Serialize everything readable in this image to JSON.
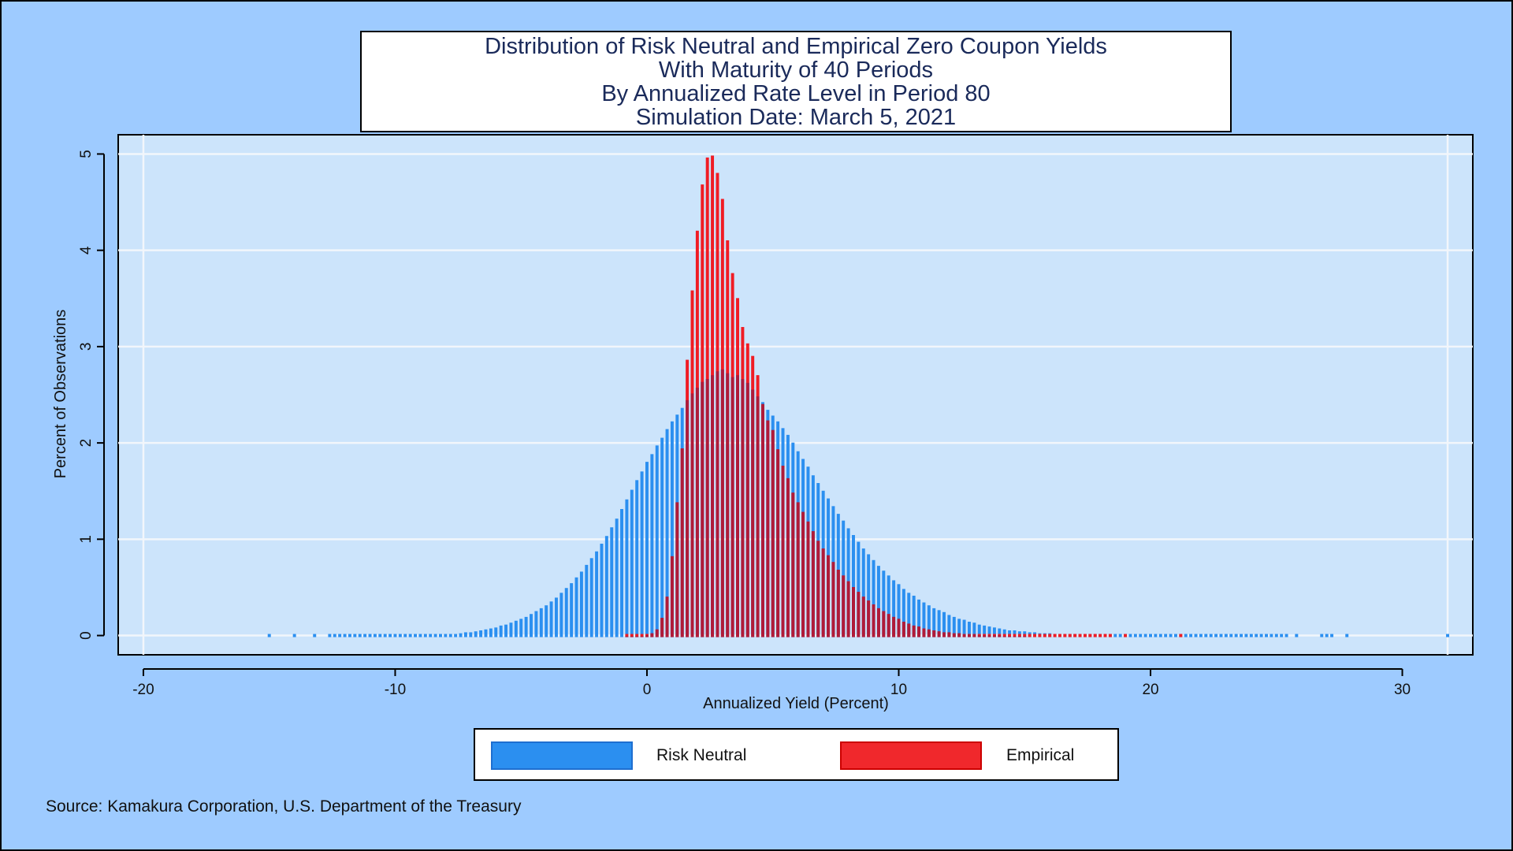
{
  "title_lines": [
    "Distribution of Risk Neutral and Empirical Zero Coupon Yields",
    "With Maturity of 40 Periods",
    "By Annualized Rate Level in Period 80",
    "Simulation Date: March 5, 2021"
  ],
  "source": "Source: Kamakura Corporation, U.S. Department of the Treasury",
  "colors": {
    "background": "#9ecbff",
    "plot_area": "#cce4fb",
    "risk_neutral": "#2b8ff0",
    "empirical": "#f01c24",
    "overlap": "#7a1c4a"
  },
  "chart_data": {
    "type": "bar",
    "xlabel": "Annualized Yield (Percent)",
    "ylabel": "Percent of Observations",
    "xlim": [
      -21,
      32.8
    ],
    "ylim": [
      -0.2,
      5.2
    ],
    "x_ticks": [
      -20,
      -10,
      0,
      10,
      20,
      30
    ],
    "x_tick_labels": [
      "-20",
      "-10",
      "0",
      "10",
      "20",
      "30"
    ],
    "y_ticks": [
      0,
      1,
      2,
      3,
      4,
      5
    ],
    "y_tick_labels": [
      "0",
      "1",
      "2",
      "3",
      "4",
      "5"
    ],
    "bin_width": 0.2,
    "grid": true,
    "legend_position": "bottom",
    "series": [
      {
        "name": "Risk Neutral",
        "color": "#2b8ff0",
        "points": [
          [
            -15.0,
            0.01
          ],
          [
            -14.0,
            0.01
          ],
          [
            -13.2,
            0.01
          ],
          [
            -12.6,
            0.01
          ],
          [
            -12.4,
            0.01
          ],
          [
            -12.2,
            0.01
          ],
          [
            -12.0,
            0.01
          ],
          [
            -11.8,
            0.01
          ],
          [
            -11.6,
            0.01
          ],
          [
            -11.4,
            0.01
          ],
          [
            -11.2,
            0.01
          ],
          [
            -11.0,
            0.01
          ],
          [
            -10.8,
            0.01
          ],
          [
            -10.6,
            0.01
          ],
          [
            -10.4,
            0.01
          ],
          [
            -10.2,
            0.01
          ],
          [
            -10.0,
            0.01
          ],
          [
            -9.8,
            0.01
          ],
          [
            -9.6,
            0.01
          ],
          [
            -9.4,
            0.01
          ],
          [
            -9.2,
            0.01
          ],
          [
            -9.0,
            0.01
          ],
          [
            -8.8,
            0.02
          ],
          [
            -8.6,
            0.02
          ],
          [
            -8.4,
            0.02
          ],
          [
            -8.2,
            0.02
          ],
          [
            -8.0,
            0.02
          ],
          [
            -7.8,
            0.03
          ],
          [
            -7.6,
            0.03
          ],
          [
            -7.4,
            0.04
          ],
          [
            -7.2,
            0.05
          ],
          [
            -7.0,
            0.05
          ],
          [
            -6.8,
            0.06
          ],
          [
            -6.6,
            0.07
          ],
          [
            -6.4,
            0.08
          ],
          [
            -6.2,
            0.09
          ],
          [
            -6.0,
            0.1
          ],
          [
            -5.8,
            0.12
          ],
          [
            -5.6,
            0.13
          ],
          [
            -5.4,
            0.15
          ],
          [
            -5.2,
            0.17
          ],
          [
            -5.0,
            0.19
          ],
          [
            -4.8,
            0.21
          ],
          [
            -4.6,
            0.24
          ],
          [
            -4.4,
            0.27
          ],
          [
            -4.2,
            0.3
          ],
          [
            -4.0,
            0.33
          ],
          [
            -3.8,
            0.37
          ],
          [
            -3.6,
            0.41
          ],
          [
            -3.4,
            0.46
          ],
          [
            -3.2,
            0.51
          ],
          [
            -3.0,
            0.56
          ],
          [
            -2.8,
            0.62
          ],
          [
            -2.6,
            0.68
          ],
          [
            -2.4,
            0.75
          ],
          [
            -2.2,
            0.82
          ],
          [
            -2.0,
            0.89
          ],
          [
            -1.8,
            0.97
          ],
          [
            -1.6,
            1.05
          ],
          [
            -1.4,
            1.14
          ],
          [
            -1.2,
            1.23
          ],
          [
            -1.0,
            1.33
          ],
          [
            -0.8,
            1.43
          ],
          [
            -0.6,
            1.53
          ],
          [
            -0.4,
            1.63
          ],
          [
            -0.2,
            1.72
          ],
          [
            0.0,
            1.82
          ],
          [
            0.2,
            1.9
          ],
          [
            0.4,
            1.99
          ],
          [
            0.6,
            2.07
          ],
          [
            0.8,
            2.16
          ],
          [
            1.0,
            2.24
          ],
          [
            1.2,
            2.31
          ],
          [
            1.4,
            2.38
          ],
          [
            1.6,
            2.46
          ],
          [
            1.8,
            2.53
          ],
          [
            2.0,
            2.59
          ],
          [
            2.2,
            2.65
          ],
          [
            2.4,
            2.68
          ],
          [
            2.6,
            2.72
          ],
          [
            2.8,
            2.76
          ],
          [
            3.0,
            2.78
          ],
          [
            3.2,
            2.74
          ],
          [
            3.4,
            2.7
          ],
          [
            3.6,
            2.72
          ],
          [
            3.8,
            2.68
          ],
          [
            4.0,
            2.64
          ],
          [
            4.2,
            2.57
          ],
          [
            4.4,
            2.5
          ],
          [
            4.6,
            2.44
          ],
          [
            4.8,
            2.36
          ],
          [
            5.0,
            2.3
          ],
          [
            5.2,
            2.24
          ],
          [
            5.4,
            2.17
          ],
          [
            5.6,
            2.1
          ],
          [
            5.8,
            2.02
          ],
          [
            6.0,
            1.93
          ],
          [
            6.2,
            1.85
          ],
          [
            6.4,
            1.77
          ],
          [
            6.6,
            1.68
          ],
          [
            6.8,
            1.6
          ],
          [
            7.0,
            1.52
          ],
          [
            7.2,
            1.44
          ],
          [
            7.4,
            1.36
          ],
          [
            7.6,
            1.28
          ],
          [
            7.8,
            1.21
          ],
          [
            8.0,
            1.13
          ],
          [
            8.2,
            1.06
          ],
          [
            8.4,
            0.99
          ],
          [
            8.6,
            0.92
          ],
          [
            8.8,
            0.86
          ],
          [
            9.0,
            0.8
          ],
          [
            9.2,
            0.74
          ],
          [
            9.4,
            0.69
          ],
          [
            9.6,
            0.64
          ],
          [
            9.8,
            0.59
          ],
          [
            10.0,
            0.55
          ],
          [
            10.2,
            0.5
          ],
          [
            10.4,
            0.46
          ],
          [
            10.6,
            0.43
          ],
          [
            10.8,
            0.39
          ],
          [
            11.0,
            0.36
          ],
          [
            11.2,
            0.33
          ],
          [
            11.4,
            0.3
          ],
          [
            11.6,
            0.28
          ],
          [
            11.8,
            0.26
          ],
          [
            12.0,
            0.23
          ],
          [
            12.2,
            0.21
          ],
          [
            12.4,
            0.19
          ],
          [
            12.6,
            0.18
          ],
          [
            12.8,
            0.16
          ],
          [
            13.0,
            0.15
          ],
          [
            13.2,
            0.13
          ],
          [
            13.4,
            0.12
          ],
          [
            13.6,
            0.11
          ],
          [
            13.8,
            0.1
          ],
          [
            14.0,
            0.09
          ],
          [
            14.2,
            0.08
          ],
          [
            14.4,
            0.07
          ],
          [
            14.6,
            0.07
          ],
          [
            14.8,
            0.06
          ],
          [
            15.0,
            0.06
          ],
          [
            15.2,
            0.05
          ],
          [
            15.4,
            0.05
          ],
          [
            15.6,
            0.04
          ],
          [
            15.8,
            0.04
          ],
          [
            16.0,
            0.04
          ],
          [
            16.2,
            0.03
          ],
          [
            16.4,
            0.03
          ],
          [
            16.6,
            0.03
          ],
          [
            16.8,
            0.03
          ],
          [
            17.0,
            0.02
          ],
          [
            17.2,
            0.02
          ],
          [
            17.4,
            0.02
          ],
          [
            17.6,
            0.02
          ],
          [
            17.8,
            0.02
          ],
          [
            18.0,
            0.02
          ],
          [
            18.2,
            0.02
          ],
          [
            18.4,
            0.02
          ],
          [
            18.6,
            0.01
          ],
          [
            18.8,
            0.01
          ],
          [
            19.0,
            0.01
          ],
          [
            19.2,
            0.01
          ],
          [
            19.4,
            0.01
          ],
          [
            19.6,
            0.01
          ],
          [
            19.8,
            0.01
          ],
          [
            20.0,
            0.01
          ],
          [
            20.2,
            0.01
          ],
          [
            20.4,
            0.01
          ],
          [
            20.6,
            0.01
          ],
          [
            20.8,
            0.01
          ],
          [
            21.0,
            0.01
          ],
          [
            21.2,
            0.01
          ],
          [
            21.4,
            0.01
          ],
          [
            21.6,
            0.01
          ],
          [
            21.8,
            0.01
          ],
          [
            22.0,
            0.01
          ],
          [
            22.2,
            0.01
          ],
          [
            22.4,
            0.01
          ],
          [
            22.6,
            0.01
          ],
          [
            22.8,
            0.01
          ],
          [
            23.0,
            0.01
          ],
          [
            23.2,
            0.01
          ],
          [
            23.4,
            0.01
          ],
          [
            23.6,
            0.01
          ],
          [
            23.8,
            0.01
          ],
          [
            24.0,
            0.01
          ],
          [
            24.2,
            0.01
          ],
          [
            24.4,
            0.01
          ],
          [
            24.6,
            0.01
          ],
          [
            24.8,
            0.01
          ],
          [
            25.0,
            0.01
          ],
          [
            25.2,
            0.01
          ],
          [
            25.4,
            0.01
          ],
          [
            25.8,
            0.01
          ],
          [
            26.8,
            0.01
          ],
          [
            27.0,
            0.01
          ],
          [
            27.2,
            0.01
          ],
          [
            27.8,
            0.01
          ],
          [
            31.8,
            0.01
          ]
        ]
      },
      {
        "name": "Empirical",
        "color": "#f01c24",
        "points": [
          [
            -0.8,
            0.01
          ],
          [
            -0.6,
            0.01
          ],
          [
            -0.4,
            0.01
          ],
          [
            -0.2,
            0.01
          ],
          [
            0.0,
            0.02
          ],
          [
            0.2,
            0.04
          ],
          [
            0.4,
            0.08
          ],
          [
            0.6,
            0.2
          ],
          [
            0.8,
            0.42
          ],
          [
            1.0,
            0.84
          ],
          [
            1.2,
            1.4
          ],
          [
            1.4,
            1.96
          ],
          [
            1.6,
            2.88
          ],
          [
            1.8,
            3.6
          ],
          [
            2.0,
            4.22
          ],
          [
            2.2,
            4.7
          ],
          [
            2.4,
            4.98
          ],
          [
            2.6,
            5.0
          ],
          [
            2.8,
            4.82
          ],
          [
            3.0,
            4.55
          ],
          [
            3.2,
            4.12
          ],
          [
            3.4,
            3.78
          ],
          [
            3.6,
            3.52
          ],
          [
            3.8,
            3.22
          ],
          [
            4.0,
            3.05
          ],
          [
            4.2,
            2.92
          ],
          [
            4.4,
            2.72
          ],
          [
            4.6,
            2.42
          ],
          [
            4.8,
            2.25
          ],
          [
            5.0,
            2.15
          ],
          [
            5.2,
            1.95
          ],
          [
            5.4,
            1.78
          ],
          [
            5.6,
            1.65
          ],
          [
            5.8,
            1.5
          ],
          [
            6.0,
            1.4
          ],
          [
            6.2,
            1.3
          ],
          [
            6.4,
            1.2
          ],
          [
            6.6,
            1.1
          ],
          [
            6.8,
            1.0
          ],
          [
            7.0,
            0.92
          ],
          [
            7.2,
            0.85
          ],
          [
            7.4,
            0.78
          ],
          [
            7.6,
            0.7
          ],
          [
            7.8,
            0.64
          ],
          [
            8.0,
            0.58
          ],
          [
            8.2,
            0.52
          ],
          [
            8.4,
            0.47
          ],
          [
            8.6,
            0.42
          ],
          [
            8.8,
            0.38
          ],
          [
            9.0,
            0.34
          ],
          [
            9.2,
            0.3
          ],
          [
            9.4,
            0.27
          ],
          [
            9.6,
            0.24
          ],
          [
            9.8,
            0.21
          ],
          [
            10.0,
            0.19
          ],
          [
            10.2,
            0.16
          ],
          [
            10.4,
            0.14
          ],
          [
            10.6,
            0.12
          ],
          [
            10.8,
            0.11
          ],
          [
            11.0,
            0.09
          ],
          [
            11.2,
            0.08
          ],
          [
            11.4,
            0.07
          ],
          [
            11.6,
            0.06
          ],
          [
            11.8,
            0.05
          ],
          [
            12.0,
            0.05
          ],
          [
            12.2,
            0.04
          ],
          [
            12.4,
            0.04
          ],
          [
            12.6,
            0.03
          ],
          [
            12.8,
            0.03
          ],
          [
            13.0,
            0.03
          ],
          [
            13.2,
            0.02
          ],
          [
            13.4,
            0.02
          ],
          [
            13.6,
            0.02
          ],
          [
            13.8,
            0.02
          ],
          [
            14.0,
            0.02
          ],
          [
            14.2,
            0.01
          ],
          [
            14.4,
            0.01
          ],
          [
            14.6,
            0.01
          ],
          [
            14.8,
            0.01
          ],
          [
            15.0,
            0.01
          ],
          [
            15.2,
            0.01
          ],
          [
            15.4,
            0.01
          ],
          [
            15.6,
            0.01
          ],
          [
            15.8,
            0.01
          ],
          [
            16.0,
            0.01
          ],
          [
            16.2,
            0.01
          ],
          [
            16.4,
            0.01
          ],
          [
            16.6,
            0.01
          ],
          [
            16.8,
            0.01
          ],
          [
            17.0,
            0.01
          ],
          [
            17.2,
            0.01
          ],
          [
            17.4,
            0.01
          ],
          [
            17.6,
            0.01
          ],
          [
            17.8,
            0.01
          ],
          [
            18.0,
            0.01
          ],
          [
            18.2,
            0.01
          ],
          [
            18.4,
            0.01
          ],
          [
            19.0,
            0.01
          ],
          [
            21.2,
            0.01
          ]
        ]
      }
    ]
  }
}
